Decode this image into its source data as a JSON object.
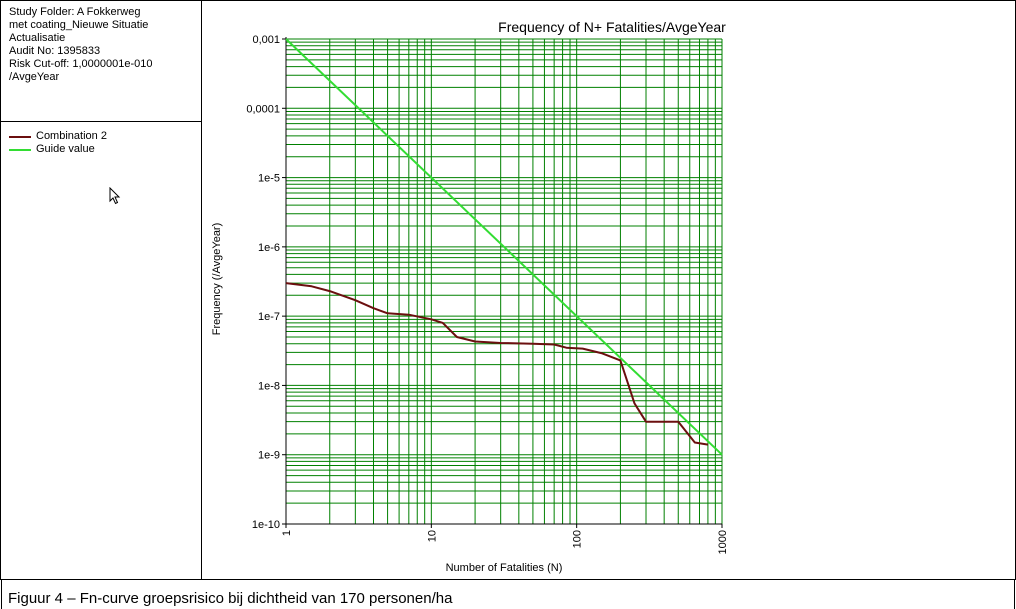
{
  "info": {
    "lines": [
      "Study Folder: A Fokkerweg",
      "met coating_Nieuwe Situatie",
      "Actualisatie",
      "Audit No: 1395833",
      "Risk Cut-off: 1,0000001e-010",
      "/AvgeYear"
    ]
  },
  "legend": {
    "items": [
      {
        "label": "Combination 2",
        "color": "#6b0f0f"
      },
      {
        "label": "Guide value",
        "color": "#33dd33"
      }
    ]
  },
  "caption": "Figuur 4 – Fn-curve groepsrisico bij dichtheid van 170 personen/ha",
  "chart_data": {
    "type": "line",
    "title": "Frequency of N+ Fatalities/AvgeYear",
    "xlabel": "Number of Fatalities (N)",
    "ylabel": "Frequency (/AvgeYear)",
    "xscale": "log",
    "yscale": "log",
    "xlim": [
      1,
      1000
    ],
    "ylim": [
      1e-10,
      0.001
    ],
    "grid": true,
    "grid_color": "#008000",
    "x_tick_labels": [
      "1",
      "10",
      "100",
      "1000"
    ],
    "y_tick_labels": [
      "0,001",
      "0,0001",
      "1e-5",
      "1e-6",
      "1e-7",
      "1e-8",
      "1e-9",
      "1e-10"
    ],
    "legend_position": "left panel",
    "series": [
      {
        "name": "Combination 2",
        "color": "#6b0f0f",
        "points": [
          [
            1,
            3e-07
          ],
          [
            1.5,
            2.7e-07
          ],
          [
            2,
            2.3e-07
          ],
          [
            3,
            1.7e-07
          ],
          [
            4,
            1.3e-07
          ],
          [
            5,
            1.1e-07
          ],
          [
            7,
            1.05e-07
          ],
          [
            10,
            9e-08
          ],
          [
            12,
            8e-08
          ],
          [
            15,
            5e-08
          ],
          [
            20,
            4.3e-08
          ],
          [
            30,
            4.1e-08
          ],
          [
            50,
            4e-08
          ],
          [
            70,
            3.9e-08
          ],
          [
            85,
            3.5e-08
          ],
          [
            110,
            3.4e-08
          ],
          [
            150,
            2.9e-08
          ],
          [
            200,
            2.3e-08
          ],
          [
            250,
            5.5e-09
          ],
          [
            300,
            3e-09
          ],
          [
            500,
            3e-09
          ],
          [
            650,
            1.5e-09
          ],
          [
            800,
            1.4e-09
          ]
        ]
      },
      {
        "name": "Guide value",
        "color": "#33dd33",
        "points": [
          [
            1,
            0.001
          ],
          [
            1000,
            1e-09
          ]
        ]
      }
    ]
  }
}
